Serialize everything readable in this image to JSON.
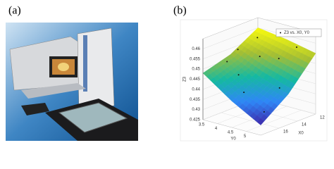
{
  "panel_a": {
    "label": "(a)"
  },
  "chart_data": {
    "type": "surface3d",
    "panel_label": "(b)",
    "legend": "Z3 vs. X0, Y0",
    "xlabel": "X0",
    "ylabel": "Y0",
    "zlabel": "Z3",
    "xlim": [
      12,
      18
    ],
    "xticks": [
      12,
      14,
      16
    ],
    "ylim": [
      3.5,
      5.5
    ],
    "yticks": [
      3.5,
      4,
      4.5,
      5
    ],
    "zlim": [
      0.425,
      0.465
    ],
    "zticks": [
      0.425,
      0.43,
      0.435,
      0.44,
      0.445,
      0.45,
      0.455,
      0.46
    ],
    "colormap": [
      "#3e26a8",
      "#2e87f7",
      "#15b9a1",
      "#a5be33",
      "#f9fb0e"
    ],
    "surface": {
      "x": [
        12,
        15,
        18
      ],
      "y": [
        3.5,
        4.5,
        5.5
      ],
      "z": [
        [
          0.46,
          0.452,
          0.448
        ],
        [
          0.458,
          0.445,
          0.438
        ],
        [
          0.455,
          0.44,
          0.43
        ]
      ]
    },
    "points": {
      "x": [
        13,
        14,
        16,
        17,
        12.5,
        15,
        17,
        13.5,
        16,
        14.5
      ],
      "y": [
        3.8,
        4.2,
        3.7,
        4.6,
        5.0,
        5.2,
        5.3,
        4.7,
        4.1,
        3.6
      ],
      "z": [
        0.458,
        0.452,
        0.451,
        0.441,
        0.457,
        0.442,
        0.434,
        0.452,
        0.446,
        0.454
      ]
    }
  }
}
